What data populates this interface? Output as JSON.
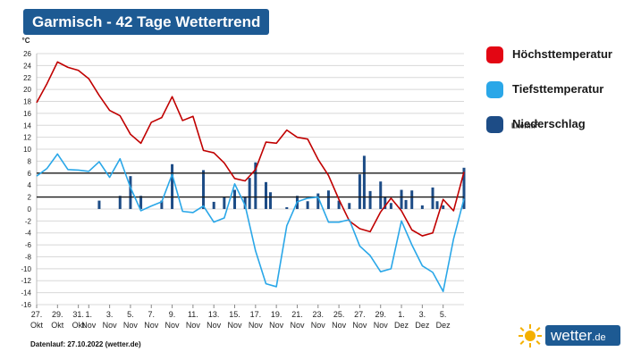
{
  "header": {
    "title": "Garmisch - 42 Tage Wettertrend"
  },
  "legend": {
    "items": [
      {
        "label": "Höchsttemperatur",
        "color": "#d00000",
        "icon": "red-square"
      },
      {
        "label": "Tiefsttemperatur",
        "color": "#2aa7e8",
        "icon": "light-blue-square"
      },
      {
        "label": "Niederschlag",
        "color": "#1d4c86",
        "icon": "dark-blue-square"
      }
    ],
    "precip_unit_prefix": "Liter/m",
    "precip_unit_sup": "2"
  },
  "footer": {
    "text": "Datenlauf: 27.10.2022 (wetter.de)"
  },
  "brand": {
    "name": "wetter",
    "tld": ".de",
    "icon": "sun-logo-icon"
  },
  "chart_data": {
    "type": "line",
    "ylabel": "°C",
    "ylim": [
      -16,
      26
    ],
    "yticks": [
      -16,
      -14,
      -12,
      -10,
      -8,
      -6,
      -4,
      -2,
      0,
      2,
      4,
      6,
      8,
      10,
      12,
      14,
      16,
      18,
      20,
      22,
      24,
      26
    ],
    "x_start": "2022-10-27",
    "x_end": "2022-12-07",
    "xticks": [
      {
        "day": "27.",
        "month": "Okt",
        "date": "2022-10-27"
      },
      {
        "day": "29.",
        "month": "Okt",
        "date": "2022-10-29"
      },
      {
        "day": "31.",
        "month": "Okt",
        "date": "2022-10-31"
      },
      {
        "day": "1.",
        "month": "Nov",
        "date": "2022-11-01"
      },
      {
        "day": "3.",
        "month": "Nov",
        "date": "2022-11-03"
      },
      {
        "day": "5.",
        "month": "Nov",
        "date": "2022-11-05"
      },
      {
        "day": "7.",
        "month": "Nov",
        "date": "2022-11-07"
      },
      {
        "day": "9.",
        "month": "Nov",
        "date": "2022-11-09"
      },
      {
        "day": "11.",
        "month": "Nov",
        "date": "2022-11-11"
      },
      {
        "day": "13.",
        "month": "Nov",
        "date": "2022-11-13"
      },
      {
        "day": "15.",
        "month": "Nov",
        "date": "2022-11-15"
      },
      {
        "day": "17.",
        "month": "Nov",
        "date": "2022-11-17"
      },
      {
        "day": "19.",
        "month": "Nov",
        "date": "2022-11-19"
      },
      {
        "day": "21.",
        "month": "Nov",
        "date": "2022-11-21"
      },
      {
        "day": "23.",
        "month": "Nov",
        "date": "2022-11-23"
      },
      {
        "day": "25.",
        "month": "Nov",
        "date": "2022-11-25"
      },
      {
        "day": "27.",
        "month": "Nov",
        "date": "2022-11-27"
      },
      {
        "day": "29.",
        "month": "Nov",
        "date": "2022-11-29"
      },
      {
        "day": "1.",
        "month": "Dez",
        "date": "2022-12-01"
      },
      {
        "day": "3.",
        "month": "Dez",
        "date": "2022-12-03"
      },
      {
        "day": "5.",
        "month": "Dez",
        "date": "2022-12-05"
      }
    ],
    "reference_lines": [
      2,
      6
    ],
    "series": [
      {
        "name": "Höchsttemperatur",
        "color": "#c00000",
        "points": [
          [
            "2022-10-27",
            17.8
          ],
          [
            "2022-10-28",
            21
          ],
          [
            "2022-10-29",
            24.6
          ],
          [
            "2022-10-30",
            23.7
          ],
          [
            "2022-10-31",
            23.2
          ],
          [
            "2022-11-01",
            21.8
          ],
          [
            "2022-11-02",
            19
          ],
          [
            "2022-11-03",
            16.5
          ],
          [
            "2022-11-04",
            15.6
          ],
          [
            "2022-11-05",
            12.5
          ],
          [
            "2022-11-06",
            11
          ],
          [
            "2022-11-07",
            14.5
          ],
          [
            "2022-11-08",
            15.3
          ],
          [
            "2022-11-09",
            18.8
          ],
          [
            "2022-11-10",
            14.8
          ],
          [
            "2022-11-11",
            15.5
          ],
          [
            "2022-11-12",
            9.8
          ],
          [
            "2022-11-13",
            9.4
          ],
          [
            "2022-11-14",
            7.7
          ],
          [
            "2022-11-15",
            5.1
          ],
          [
            "2022-11-16",
            4.7
          ],
          [
            "2022-11-17",
            6.6
          ],
          [
            "2022-11-18",
            11.2
          ],
          [
            "2022-11-19",
            11
          ],
          [
            "2022-11-20",
            13.2
          ],
          [
            "2022-11-21",
            12
          ],
          [
            "2022-11-22",
            11.7
          ],
          [
            "2022-11-23",
            8.3
          ],
          [
            "2022-11-24",
            5.6
          ],
          [
            "2022-11-25",
            1.6
          ],
          [
            "2022-11-26",
            -2
          ],
          [
            "2022-11-27",
            -3.3
          ],
          [
            "2022-11-28",
            -3.8
          ],
          [
            "2022-11-29",
            -0.5
          ],
          [
            "2022-11-30",
            1.8
          ],
          [
            "2022-12-01",
            -0.3
          ],
          [
            "2022-12-02",
            -3.5
          ],
          [
            "2022-12-03",
            -4.5
          ],
          [
            "2022-12-04",
            -4
          ],
          [
            "2022-12-05",
            1.6
          ],
          [
            "2022-12-06",
            -0.3
          ],
          [
            "2022-12-07",
            6.2
          ]
        ]
      },
      {
        "name": "Tiefsttemperatur",
        "color": "#2aa7e8",
        "points": [
          [
            "2022-10-27",
            5.5
          ],
          [
            "2022-10-28",
            6.8
          ],
          [
            "2022-10-29",
            9.2
          ],
          [
            "2022-10-30",
            6.6
          ],
          [
            "2022-10-31",
            6.5
          ],
          [
            "2022-11-01",
            6.3
          ],
          [
            "2022-11-02",
            7.9
          ],
          [
            "2022-11-03",
            5.3
          ],
          [
            "2022-11-04",
            8.4
          ],
          [
            "2022-11-05",
            3.6
          ],
          [
            "2022-11-06",
            -0.3
          ],
          [
            "2022-11-07",
            0.5
          ],
          [
            "2022-11-08",
            1.2
          ],
          [
            "2022-11-09",
            5.8
          ],
          [
            "2022-11-10",
            -0.4
          ],
          [
            "2022-11-11",
            -0.6
          ],
          [
            "2022-11-12",
            0.5
          ],
          [
            "2022-11-13",
            -2.2
          ],
          [
            "2022-11-14",
            -1.5
          ],
          [
            "2022-11-15",
            4.2
          ],
          [
            "2022-11-16",
            0.6
          ],
          [
            "2022-11-17",
            -7
          ],
          [
            "2022-11-18",
            -12.5
          ],
          [
            "2022-11-19",
            -13
          ],
          [
            "2022-11-20",
            -2.8
          ],
          [
            "2022-11-21",
            1.2
          ],
          [
            "2022-11-22",
            1.8
          ],
          [
            "2022-11-23",
            2
          ],
          [
            "2022-11-24",
            -2.2
          ],
          [
            "2022-11-25",
            -2.2
          ],
          [
            "2022-11-26",
            -1.8
          ],
          [
            "2022-11-27",
            -6.2
          ],
          [
            "2022-11-28",
            -7.8
          ],
          [
            "2022-11-29",
            -10.5
          ],
          [
            "2022-11-30",
            -10
          ],
          [
            "2022-12-01",
            -2
          ],
          [
            "2022-12-02",
            -6
          ],
          [
            "2022-12-03",
            -9.5
          ],
          [
            "2022-12-04",
            -10.6
          ],
          [
            "2022-12-05",
            -13.8
          ],
          [
            "2022-12-06",
            -5
          ],
          [
            "2022-12-07",
            1.7
          ]
        ]
      }
    ],
    "precipitation": {
      "name": "Niederschlag",
      "color": "#1d4c86",
      "bars": [
        [
          "2022-11-02",
          1.4
        ],
        [
          "2022-11-04",
          2.2
        ],
        [
          "2022-11-05",
          5.5
        ],
        [
          "2022-11-06",
          2.2
        ],
        [
          "2022-11-08",
          1.4
        ],
        [
          "2022-11-09",
          7.5
        ],
        [
          "2022-11-12",
          6.5
        ],
        [
          "2022-11-13",
          1.2
        ],
        [
          "2022-11-14",
          2
        ],
        [
          "2022-11-15",
          3.2
        ],
        [
          "2022-11-16",
          2
        ],
        [
          "2022-11-16",
          5.2
        ],
        [
          "2022-11-17",
          7.8
        ],
        [
          "2022-11-18",
          4.5
        ],
        [
          "2022-11-18",
          2.8
        ],
        [
          "2022-11-20",
          0.3
        ],
        [
          "2022-11-21",
          2.2
        ],
        [
          "2022-11-22",
          1.3
        ],
        [
          "2022-11-23",
          2.6
        ],
        [
          "2022-11-24",
          3.1
        ],
        [
          "2022-11-25",
          1.4
        ],
        [
          "2022-11-26",
          1
        ],
        [
          "2022-11-27",
          5.8
        ],
        [
          "2022-11-27",
          8.9
        ],
        [
          "2022-11-28",
          3
        ],
        [
          "2022-11-29",
          4.6
        ],
        [
          "2022-11-29",
          2
        ],
        [
          "2022-11-30",
          1
        ],
        [
          "2022-12-01",
          3.2
        ],
        [
          "2022-12-01",
          1.5
        ],
        [
          "2022-12-02",
          3.1
        ],
        [
          "2022-12-03",
          0.6
        ],
        [
          "2022-12-04",
          3.6
        ],
        [
          "2022-12-04",
          1.3
        ],
        [
          "2022-12-05",
          0.6
        ],
        [
          "2022-12-07",
          6.9
        ]
      ]
    }
  }
}
